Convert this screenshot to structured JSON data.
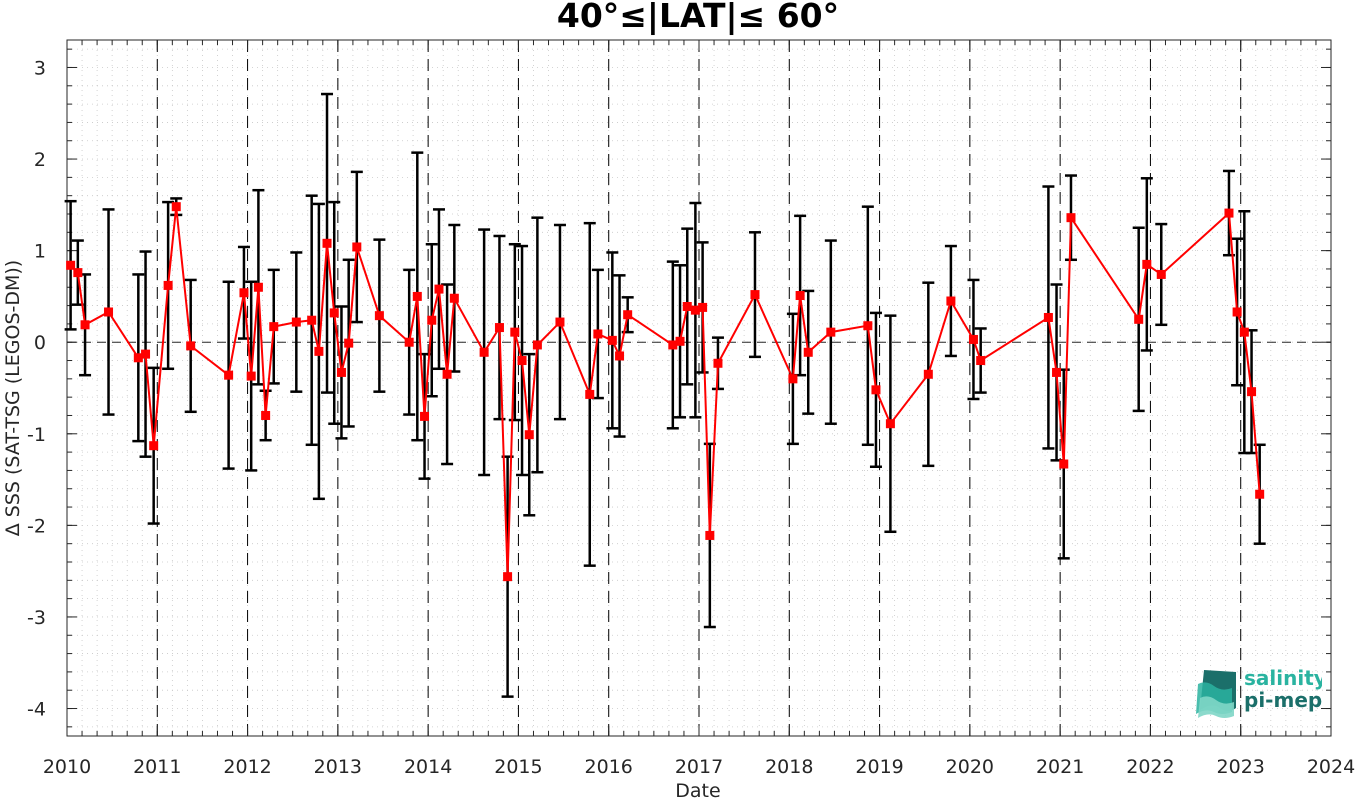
{
  "chart_data": {
    "type": "scatter",
    "title": "40°≤|LAT|≤ 60°",
    "xlabel": "Date",
    "ylabel": "Δ SSS (SAT-TSG (LEGOS-DM))",
    "xlim": [
      2010,
      2024
    ],
    "ylim": [
      -4.3,
      3.3
    ],
    "x_ticks": [
      "2010",
      "2011",
      "2012",
      "2013",
      "2014",
      "2015",
      "2016",
      "2017",
      "2018",
      "2019",
      "2020",
      "2021",
      "2022",
      "2023",
      "2024"
    ],
    "y_ticks": [
      "-4",
      "-3",
      "-2",
      "-1",
      "0",
      "1",
      "2",
      "3"
    ],
    "grid": "minor dotted",
    "reference_line": 0,
    "series": [
      {
        "color": "#ff0000",
        "error_color": "#000000",
        "marker": "square",
        "points": [
          {
            "x": 2010.04,
            "y": 0.84,
            "err": 0.7
          },
          {
            "x": 2010.12,
            "y": 0.76,
            "err": 0.35
          },
          {
            "x": 2010.2,
            "y": 0.19,
            "err": 0.55
          },
          {
            "x": 2010.46,
            "y": 0.33,
            "err": 1.12
          },
          {
            "x": 2010.79,
            "y": -0.17,
            "err": 0.91
          },
          {
            "x": 2010.87,
            "y": -0.13,
            "err": 1.12
          },
          {
            "x": 2010.96,
            "y": -1.13,
            "err": 0.85
          },
          {
            "x": 2011.12,
            "y": 0.62,
            "err": 0.91
          },
          {
            "x": 2011.21,
            "y": 1.48,
            "err": 0.09
          },
          {
            "x": 2011.37,
            "y": -0.04,
            "err": 0.72
          },
          {
            "x": 2011.79,
            "y": -0.36,
            "err": 1.02
          },
          {
            "x": 2011.96,
            "y": 0.54,
            "err": 0.5
          },
          {
            "x": 2012.04,
            "y": -0.37,
            "err": 1.03
          },
          {
            "x": 2012.12,
            "y": 0.6,
            "err": 1.06
          },
          {
            "x": 2012.2,
            "y": -0.8,
            "err": 0.27
          },
          {
            "x": 2012.29,
            "y": 0.17,
            "err": 0.62
          },
          {
            "x": 2012.54,
            "y": 0.22,
            "err": 0.76
          },
          {
            "x": 2012.71,
            "y": 0.24,
            "err": 1.36
          },
          {
            "x": 2012.79,
            "y": -0.1,
            "err": 1.61
          },
          {
            "x": 2012.88,
            "y": 1.08,
            "err": 1.63
          },
          {
            "x": 2012.96,
            "y": 0.32,
            "err": 1.21
          },
          {
            "x": 2013.04,
            "y": -0.33,
            "err": 0.72
          },
          {
            "x": 2013.12,
            "y": -0.01,
            "err": 0.91
          },
          {
            "x": 2013.21,
            "y": 1.04,
            "err": 0.82
          },
          {
            "x": 2013.46,
            "y": 0.29,
            "err": 0.83
          },
          {
            "x": 2013.79,
            "y": 0.0,
            "err": 0.79
          },
          {
            "x": 2013.88,
            "y": 0.5,
            "err": 1.57
          },
          {
            "x": 2013.96,
            "y": -0.81,
            "err": 0.68
          },
          {
            "x": 2014.04,
            "y": 0.24,
            "err": 0.83
          },
          {
            "x": 2014.12,
            "y": 0.58,
            "err": 0.87
          },
          {
            "x": 2014.21,
            "y": -0.35,
            "err": 0.98
          },
          {
            "x": 2014.29,
            "y": 0.48,
            "err": 0.8
          },
          {
            "x": 2014.62,
            "y": -0.11,
            "err": 1.34
          },
          {
            "x": 2014.79,
            "y": 0.16,
            "err": 1.0
          },
          {
            "x": 2014.88,
            "y": -2.56,
            "err": 1.31
          },
          {
            "x": 2014.96,
            "y": 0.11,
            "err": 0.96
          },
          {
            "x": 2015.04,
            "y": -0.2,
            "err": 1.25
          },
          {
            "x": 2015.12,
            "y": -1.01,
            "err": 0.88
          },
          {
            "x": 2015.21,
            "y": -0.03,
            "err": 1.39
          },
          {
            "x": 2015.46,
            "y": 0.22,
            "err": 1.06
          },
          {
            "x": 2015.79,
            "y": -0.57,
            "err": 1.87
          },
          {
            "x": 2015.88,
            "y": 0.09,
            "err": 0.7
          },
          {
            "x": 2016.04,
            "y": 0.02,
            "err": 0.96
          },
          {
            "x": 2016.12,
            "y": -0.15,
            "err": 0.88
          },
          {
            "x": 2016.21,
            "y": 0.3,
            "err": 0.19
          },
          {
            "x": 2016.71,
            "y": -0.03,
            "err": 0.91
          },
          {
            "x": 2016.79,
            "y": 0.01,
            "err": 0.83
          },
          {
            "x": 2016.87,
            "y": 0.39,
            "err": 0.85
          },
          {
            "x": 2016.96,
            "y": 0.35,
            "err": 1.17
          },
          {
            "x": 2017.04,
            "y": 0.38,
            "err": 0.71
          },
          {
            "x": 2017.12,
            "y": -2.11,
            "err": 1.0
          },
          {
            "x": 2017.21,
            "y": -0.23,
            "err": 0.28
          },
          {
            "x": 2017.62,
            "y": 0.52,
            "err": 0.68
          },
          {
            "x": 2018.04,
            "y": -0.4,
            "err": 0.71
          },
          {
            "x": 2018.12,
            "y": 0.51,
            "err": 0.87
          },
          {
            "x": 2018.21,
            "y": -0.11,
            "err": 0.67
          },
          {
            "x": 2018.46,
            "y": 0.11,
            "err": 1.0
          },
          {
            "x": 2018.87,
            "y": 0.18,
            "err": 1.3
          },
          {
            "x": 2018.96,
            "y": -0.52,
            "err": 0.84
          },
          {
            "x": 2019.12,
            "y": -0.89,
            "err": 1.18
          },
          {
            "x": 2019.54,
            "y": -0.35,
            "err": 1.0
          },
          {
            "x": 2019.79,
            "y": 0.45,
            "err": 0.6
          },
          {
            "x": 2020.04,
            "y": 0.03,
            "err": 0.65
          },
          {
            "x": 2020.12,
            "y": -0.2,
            "err": 0.35
          },
          {
            "x": 2020.87,
            "y": 0.27,
            "err": 1.43
          },
          {
            "x": 2020.96,
            "y": -0.33,
            "err": 0.96
          },
          {
            "x": 2021.04,
            "y": -1.33,
            "err": 1.03
          },
          {
            "x": 2021.12,
            "y": 1.36,
            "err": 0.46
          },
          {
            "x": 2021.87,
            "y": 0.25,
            "err": 1.0
          },
          {
            "x": 2021.96,
            "y": 0.85,
            "err": 0.94
          },
          {
            "x": 2022.12,
            "y": 0.74,
            "err": 0.55
          },
          {
            "x": 2022.87,
            "y": 1.41,
            "err": 0.46
          },
          {
            "x": 2022.96,
            "y": 0.33,
            "err": 0.8
          },
          {
            "x": 2023.04,
            "y": 0.11,
            "err": 1.32
          },
          {
            "x": 2023.12,
            "y": -0.54,
            "err": 0.67
          },
          {
            "x": 2023.21,
            "y": -1.66,
            "err": 0.54
          }
        ]
      }
    ]
  },
  "logo": {
    "line1": "salinity",
    "line2": "pi-mep",
    "color1": "#2ab3a0",
    "color2": "#1b6f6a"
  }
}
